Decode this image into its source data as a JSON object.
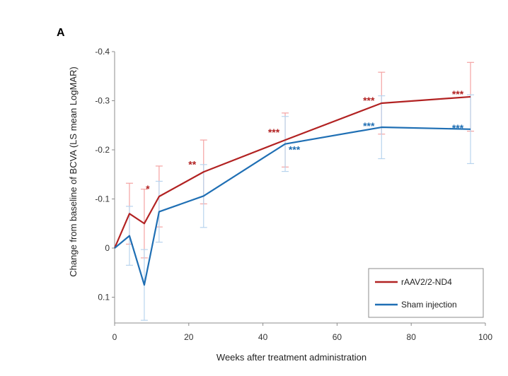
{
  "chart_data": {
    "type": "line",
    "panel_label": "A",
    "xlabel": "Weeks after treatment administration",
    "ylabel": "Change from baseline of BCVA (LS mean LogMAR)",
    "xlim": [
      0,
      100
    ],
    "ylim": [
      0.15,
      -0.4
    ],
    "y_axis_inverted": true,
    "x_ticks": [
      0,
      20,
      40,
      60,
      80,
      100
    ],
    "y_ticks": [
      -0.4,
      -0.3,
      -0.2,
      -0.1,
      0,
      0.1
    ],
    "y_tick_labels": [
      "-0.4",
      "-0.3",
      "-0.2",
      "-0.1",
      "0",
      "0.1"
    ],
    "grid": false,
    "legend": "bottom-right",
    "series": [
      {
        "name": "rAAV2/2-ND4",
        "color": "#b22222",
        "error_color": "#f4a3a3",
        "x": [
          0,
          4,
          8,
          12,
          24,
          46,
          72,
          96
        ],
        "y": [
          0,
          -0.07,
          -0.05,
          -0.105,
          -0.155,
          -0.22,
          -0.295,
          -0.308
        ],
        "error": [
          0,
          0.062,
          0.07,
          0.062,
          0.065,
          0.055,
          0.063,
          0.07
        ],
        "significance": [
          "",
          "",
          "",
          "*",
          "**",
          "***",
          "***",
          "***"
        ]
      },
      {
        "name": "Sham injection",
        "color": "#1f6fb4",
        "error_color": "#b8d4ee",
        "x": [
          0,
          4,
          8,
          12,
          24,
          46,
          72,
          96
        ],
        "y": [
          0,
          -0.025,
          0.075,
          -0.074,
          -0.106,
          -0.212,
          -0.246,
          -0.242
        ],
        "error": [
          0,
          0.06,
          0.072,
          0.062,
          0.064,
          0.056,
          0.064,
          0.07
        ],
        "significance": [
          "",
          "",
          "",
          "",
          "",
          "***",
          "***",
          "***"
        ]
      }
    ]
  }
}
